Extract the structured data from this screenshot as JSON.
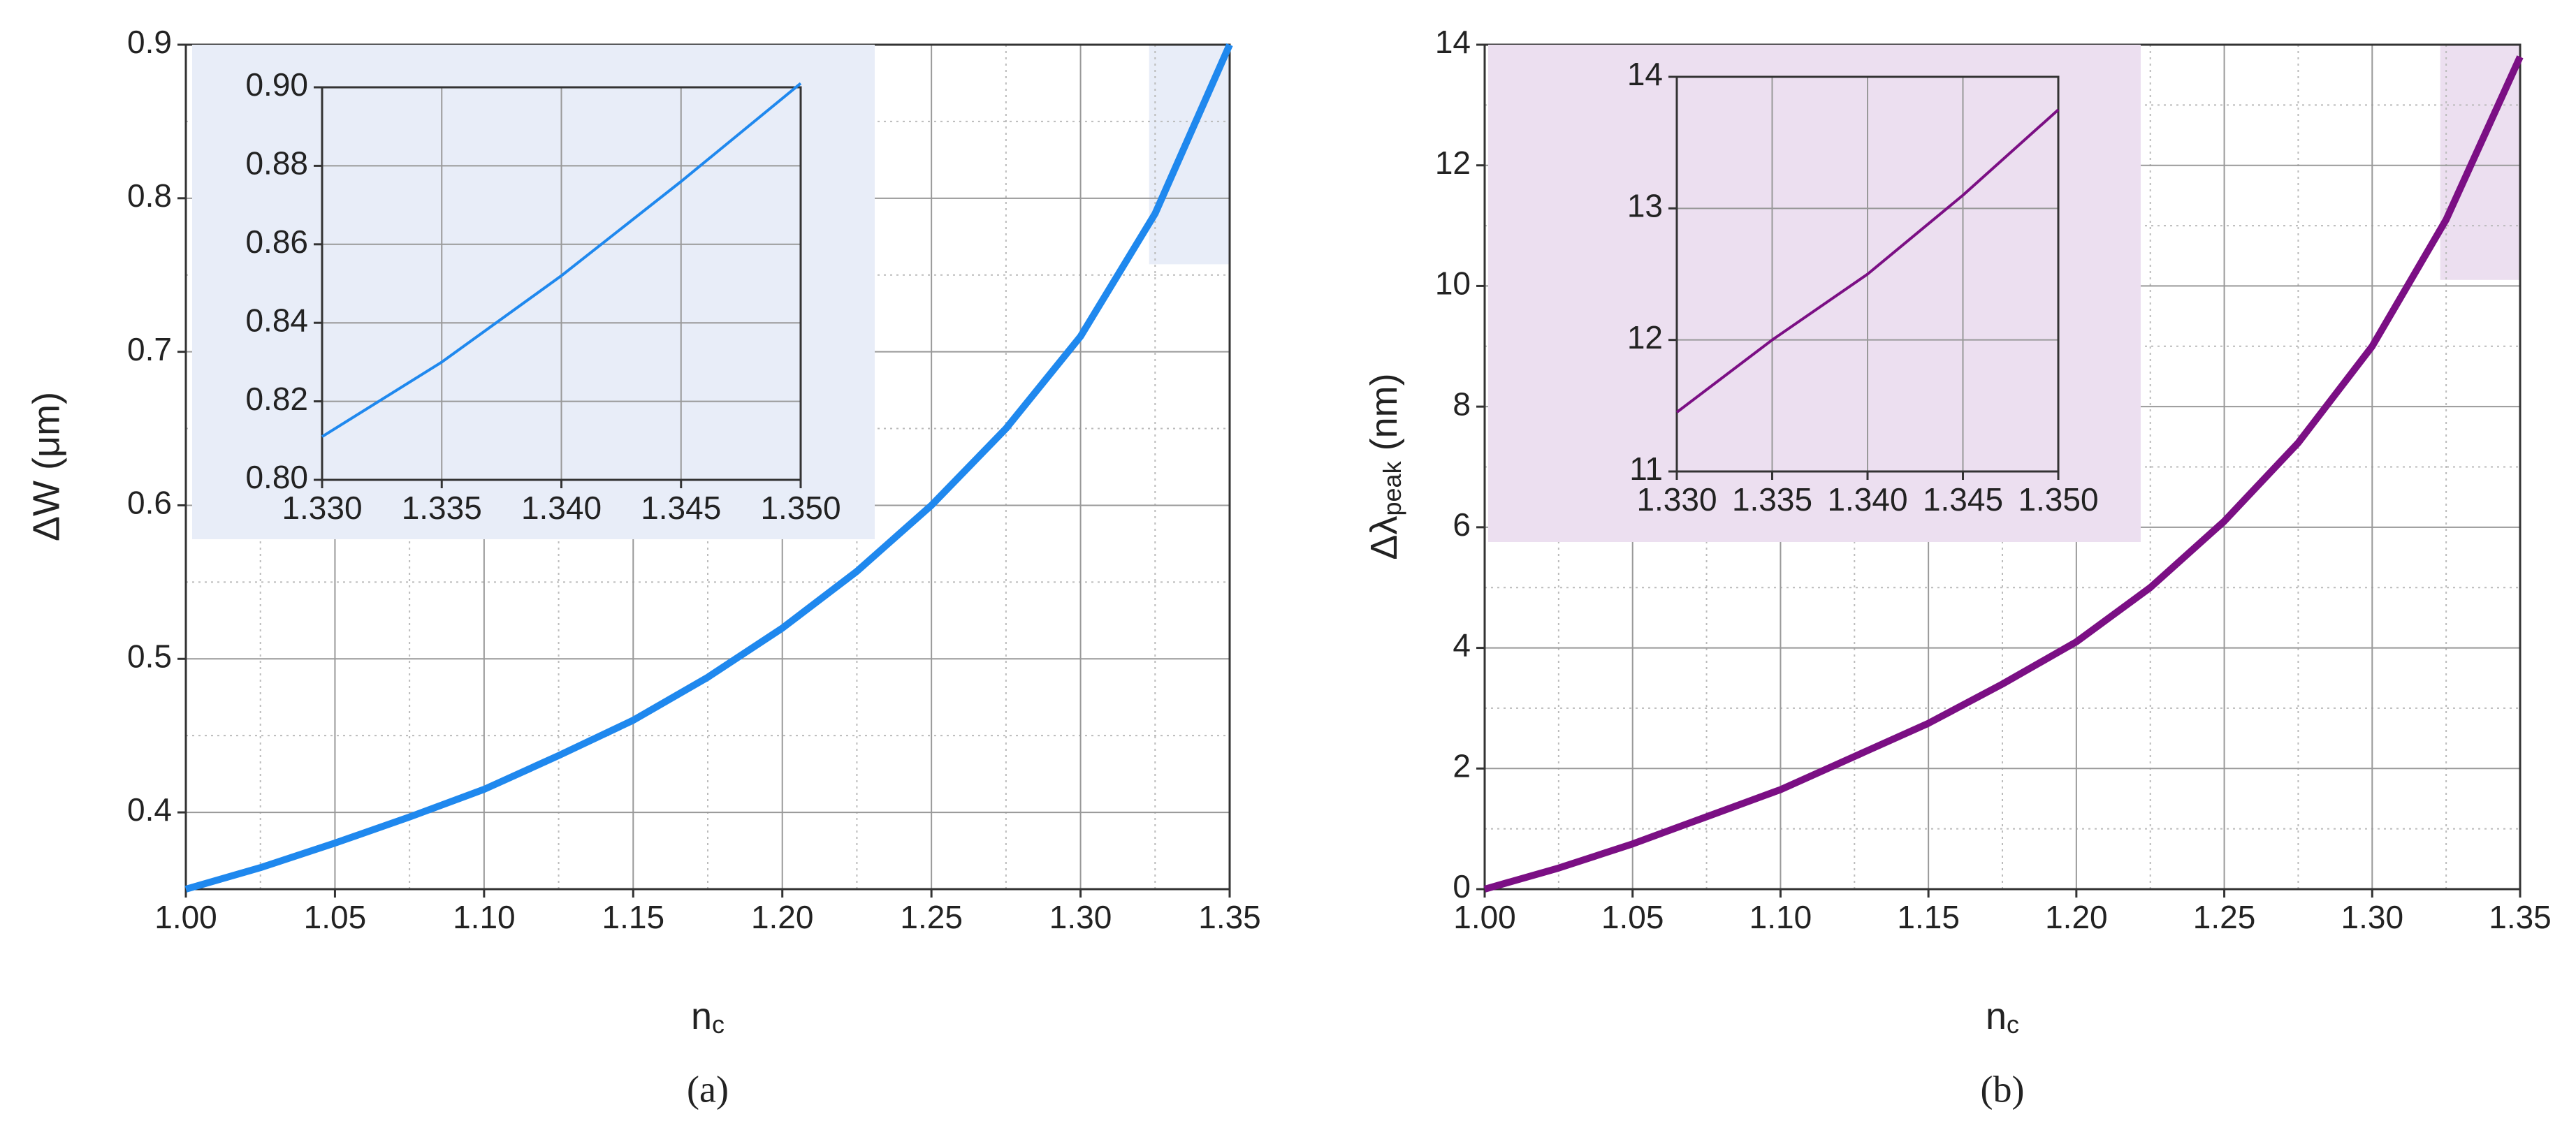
{
  "chart_data": [
    {
      "type": "line",
      "label": "(a)",
      "x_label": {
        "text": "n",
        "subscript": "c"
      },
      "y_label": "ΔW (μm)",
      "x": [
        1.0,
        1.025,
        1.05,
        1.075,
        1.1,
        1.125,
        1.15,
        1.175,
        1.2,
        1.225,
        1.25,
        1.275,
        1.3,
        1.325,
        1.35
      ],
      "values": [
        0.35,
        0.364,
        0.38,
        0.397,
        0.415,
        0.437,
        0.46,
        0.488,
        0.52,
        0.557,
        0.6,
        0.65,
        0.71,
        0.79,
        0.9
      ],
      "color": "#1f88ee",
      "background": "#e8edf8",
      "xlim": [
        1.0,
        1.35
      ],
      "xticks": [
        {
          "value": 1.0,
          "label": "1.00"
        },
        1.05,
        {
          "value": 1.1,
          "label": "1.10"
        },
        1.15,
        {
          "value": 1.2,
          "label": "1.20"
        },
        1.25,
        {
          "value": 1.3,
          "label": "1.30"
        },
        1.35
      ],
      "ylim": [
        0.35,
        0.9
      ],
      "yticks": [
        0.4,
        0.5,
        0.6,
        0.7,
        0.8,
        0.9
      ],
      "grid": true,
      "minor_grid": true,
      "inset_region": {
        "xlim": [
          1.323,
          1.35
        ],
        "ylim": [
          0.757,
          0.9
        ]
      },
      "inset": {
        "type": "line",
        "x": [
          1.33,
          1.335,
          1.34,
          1.345,
          1.35
        ],
        "values": [
          0.811,
          0.83,
          0.852,
          0.876,
          0.901
        ],
        "color": "#1f88ee",
        "xlim": [
          1.33,
          1.35
        ],
        "xticks": [
          {
            "value": 1.33,
            "label": "1.330"
          },
          1.335,
          {
            "value": 1.34,
            "label": "1.340"
          },
          1.345,
          {
            "value": 1.35,
            "label": "1.350"
          }
        ],
        "ylim": [
          0.8,
          0.9
        ],
        "yticks": [
          {
            "value": 0.8,
            "label": "0.80"
          },
          0.82,
          0.84,
          0.86,
          0.88,
          {
            "value": 0.9,
            "label": "0.90"
          }
        ],
        "grid": true
      }
    },
    {
      "type": "line",
      "label": "(b)",
      "x_label": {
        "text": "n",
        "subscript": "c"
      },
      "y_label": {
        "text": "Δλ",
        "subscript": "peak",
        "suffix": " (nm)"
      },
      "x": [
        1.0,
        1.025,
        1.05,
        1.075,
        1.1,
        1.125,
        1.15,
        1.175,
        1.2,
        1.225,
        1.25,
        1.275,
        1.3,
        1.325,
        1.35
      ],
      "values": [
        0,
        0.35,
        0.75,
        1.2,
        1.65,
        2.2,
        2.75,
        3.4,
        4.1,
        5.0,
        6.1,
        7.4,
        9.0,
        11.1,
        13.8
      ],
      "color": "#7b0f84",
      "background": "#ecdff0",
      "xlim": [
        1.0,
        1.35
      ],
      "xticks": [
        {
          "value": 1.0,
          "label": "1.00"
        },
        1.05,
        {
          "value": 1.1,
          "label": "1.10"
        },
        1.15,
        {
          "value": 1.2,
          "label": "1.20"
        },
        1.25,
        {
          "value": 1.3,
          "label": "1.30"
        },
        1.35
      ],
      "ylim": [
        0,
        14
      ],
      "yticks": [
        0,
        2,
        4,
        6,
        8,
        10,
        12,
        14
      ],
      "grid": true,
      "minor_grid": true,
      "inset_region": {
        "xlim": [
          1.323,
          1.35
        ],
        "ylim": [
          10.1,
          14
        ]
      },
      "inset": {
        "type": "line",
        "x": [
          1.33,
          1.335,
          1.34,
          1.345,
          1.35
        ],
        "values": [
          11.45,
          12.0,
          12.5,
          13.1,
          13.75
        ],
        "color": "#7b0f84",
        "xlim": [
          1.33,
          1.35
        ],
        "xticks": [
          {
            "value": 1.33,
            "label": "1.330"
          },
          1.335,
          {
            "value": 1.34,
            "label": "1.340"
          },
          1.345,
          {
            "value": 1.35,
            "label": "1.350"
          }
        ],
        "ylim": [
          11,
          14
        ],
        "yticks": [
          11,
          12,
          13,
          14
        ],
        "grid": true
      }
    }
  ]
}
